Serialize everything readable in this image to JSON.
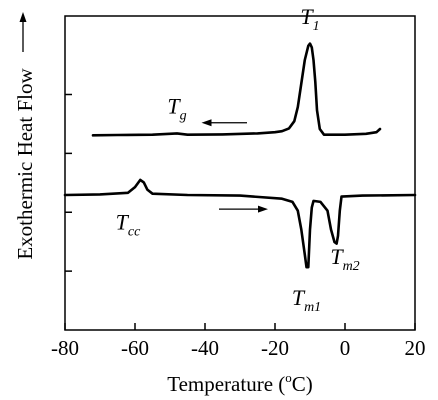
{
  "chart_data": {
    "type": "line",
    "title": "",
    "xlabel": "Temperature (°C)",
    "xlabel_parts": {
      "pre": "Temperature (",
      "sup": "o",
      "post": "C)"
    },
    "ylabel": "Exothermic Heat Flow",
    "xlim": [
      -80,
      20
    ],
    "x_ticks": [
      -80,
      -60,
      -40,
      -20,
      0,
      20
    ],
    "y_ticks_shown": false,
    "grid": false,
    "legend": "none",
    "series": [
      {
        "direction": "cooling",
        "points": [
          [
            -72,
            0.62
          ],
          [
            -65,
            0.621
          ],
          [
            -55,
            0.622
          ],
          [
            -48,
            0.626
          ],
          [
            -45,
            0.622
          ],
          [
            -35,
            0.623
          ],
          [
            -25,
            0.626
          ],
          [
            -20,
            0.63
          ],
          [
            -18,
            0.633
          ],
          [
            -16,
            0.642
          ],
          [
            -14.5,
            0.665
          ],
          [
            -13.5,
            0.71
          ],
          [
            -12.5,
            0.785
          ],
          [
            -11.5,
            0.86
          ],
          [
            -10.5,
            0.905
          ],
          [
            -10,
            0.912
          ],
          [
            -9.5,
            0.9
          ],
          [
            -9,
            0.86
          ],
          [
            -8.5,
            0.79
          ],
          [
            -8,
            0.7
          ],
          [
            -7.2,
            0.64
          ],
          [
            -6,
            0.622
          ],
          [
            0,
            0.622
          ],
          [
            6,
            0.625
          ],
          [
            9,
            0.63
          ],
          [
            10,
            0.64
          ]
        ]
      },
      {
        "direction": "heating",
        "points": [
          [
            -80,
            0.43
          ],
          [
            -70,
            0.432
          ],
          [
            -62,
            0.437
          ],
          [
            -60,
            0.455
          ],
          [
            -58.5,
            0.478
          ],
          [
            -57.5,
            0.47
          ],
          [
            -56.5,
            0.447
          ],
          [
            -55,
            0.434
          ],
          [
            -45,
            0.43
          ],
          [
            -30,
            0.428
          ],
          [
            -18,
            0.418
          ],
          [
            -15,
            0.408
          ],
          [
            -13.5,
            0.38
          ],
          [
            -12.5,
            0.32
          ],
          [
            -11.5,
            0.24
          ],
          [
            -11,
            0.2
          ],
          [
            -10.5,
            0.2
          ],
          [
            -10,
            0.32
          ],
          [
            -9.5,
            0.39
          ],
          [
            -9,
            0.411
          ],
          [
            -7,
            0.408
          ],
          [
            -5,
            0.38
          ],
          [
            -4,
            0.32
          ],
          [
            -3,
            0.28
          ],
          [
            -2.4,
            0.275
          ],
          [
            -2,
            0.3
          ],
          [
            -1.5,
            0.38
          ],
          [
            -1,
            0.425
          ],
          [
            5,
            0.428
          ],
          [
            20,
            0.43
          ]
        ]
      }
    ],
    "annotations": [
      {
        "base": "T",
        "sub": "1",
        "x": -10,
        "y": 0.975
      },
      {
        "base": "T",
        "sub": "g",
        "x": -48,
        "y": 0.69
      },
      {
        "base": "T",
        "sub": "cc",
        "x": -62,
        "y": 0.32
      },
      {
        "base": "T",
        "sub": "m2",
        "x": 0,
        "y": 0.21
      },
      {
        "base": "T",
        "sub": "m1",
        "x": -11,
        "y": 0.08
      }
    ],
    "arrows": [
      {
        "from": [
          -28,
          0.66
        ],
        "to": [
          -41,
          0.66
        ]
      },
      {
        "from": [
          -36,
          0.385
        ],
        "to": [
          -22,
          0.385
        ]
      }
    ]
  }
}
